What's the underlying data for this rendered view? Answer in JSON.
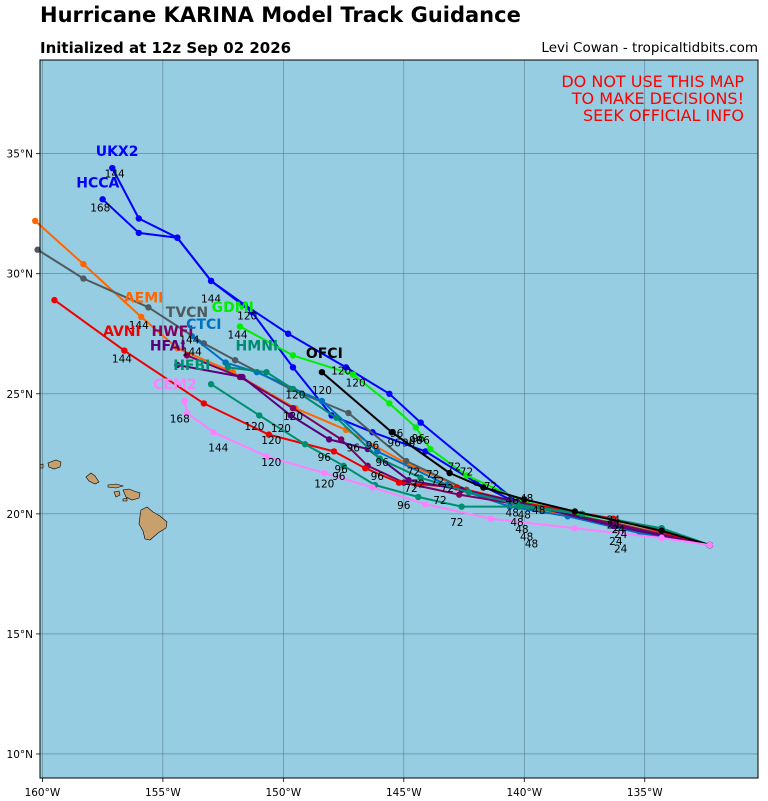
{
  "header": {
    "title": "Hurricane KARINA Model Track Guidance",
    "subtitle": "Initialized at 12z Sep 02 2026",
    "credit": "Levi Cowan - tropicaltidbits.com"
  },
  "warning": [
    "DO NOT USE THIS MAP",
    "TO MAKE DECISIONS!",
    "SEEK OFFICIAL INFO"
  ],
  "colors": {
    "ocean": "#96cde2",
    "land": "#c8a06e",
    "grid": "#4a6b78",
    "warning": "#ff0000"
  },
  "axes": {
    "lon_ticks": [
      -160,
      -155,
      -150,
      -145,
      -140,
      -135
    ],
    "lon_labels": [
      "160°W",
      "155°W",
      "150°W",
      "145°W",
      "140°W",
      "135°W"
    ],
    "lat_ticks": [
      10,
      15,
      20,
      25,
      30,
      35
    ],
    "lat_labels": [
      "10°N",
      "15°N",
      "20°N",
      "25°N",
      "30°N",
      "35°N"
    ],
    "lon_range": [
      -160.1,
      -130.3
    ],
    "lat_range": [
      9.0,
      38.9
    ],
    "grid": true
  },
  "models": [
    {
      "name": "UKX2",
      "color": "#0000ff",
      "points": [
        [
          -132.3,
          18.7
        ],
        [
          -136.2,
          19.5
        ],
        [
          -140.2,
          20.4
        ],
        [
          -144.3,
          23.8
        ],
        [
          -145.6,
          25.0
        ],
        [
          -147.4,
          26.1
        ],
        [
          -149.8,
          27.5
        ],
        [
          -151.6,
          28.7
        ],
        [
          -153.0,
          29.7
        ],
        [
          -154.4,
          31.5
        ],
        [
          -156.0,
          32.3
        ],
        [
          -157.1,
          34.4
        ]
      ],
      "hour_labels": [
        {
          "text": "144",
          "pos": [
            -157.0,
            34.0
          ]
        }
      ]
    },
    {
      "name": "HCCA",
      "color": "#0000ff",
      "points": [
        [
          -132.3,
          18.7
        ],
        [
          -136.3,
          19.5
        ],
        [
          -140.0,
          20.3
        ],
        [
          -142.0,
          21.3
        ],
        [
          -144.1,
          22.6
        ],
        [
          -146.3,
          23.4
        ],
        [
          -148.0,
          24.1
        ],
        [
          -149.6,
          26.1
        ],
        [
          -151.3,
          28.4
        ],
        [
          -153.0,
          29.7
        ],
        [
          -154.4,
          31.5
        ],
        [
          -156.0,
          31.7
        ],
        [
          -157.5,
          33.1
        ]
      ],
      "hour_labels": [
        {
          "text": "144",
          "pos": [
            -153.0,
            28.8
          ]
        },
        {
          "text": "168",
          "pos": [
            -157.6,
            32.6
          ]
        }
      ]
    },
    {
      "name": "AEMI",
      "color": "#ff6600",
      "points": [
        [
          -132.3,
          18.7
        ],
        [
          -136.1,
          19.6
        ],
        [
          -140.1,
          20.3
        ],
        [
          -142.4,
          21.0
        ],
        [
          -144.9,
          22.1
        ],
        [
          -147.4,
          23.5
        ],
        [
          -149.5,
          24.4
        ],
        [
          -152.1,
          25.9
        ],
        [
          -154.4,
          26.9
        ],
        [
          -155.9,
          28.2
        ],
        [
          -158.3,
          30.4
        ],
        [
          -160.3,
          32.2
        ]
      ],
      "hour_labels": [
        {
          "text": "144",
          "pos": [
            -156.0,
            27.7
          ]
        }
      ]
    },
    {
      "name": "TVCN",
      "color": "#4f5a5f",
      "points": [
        [
          -132.3,
          18.7
        ],
        [
          -136.2,
          19.6
        ],
        [
          -140.2,
          20.4
        ],
        [
          -142.4,
          21.0
        ],
        [
          -144.9,
          22.2
        ],
        [
          -147.3,
          24.2
        ],
        [
          -149.7,
          25.2
        ],
        [
          -152.0,
          26.4
        ],
        [
          -153.3,
          27.1
        ],
        [
          -155.6,
          28.6
        ],
        [
          -158.3,
          29.8
        ],
        [
          -160.2,
          31.0
        ]
      ],
      "hour_labels": [
        {
          "text": "144",
          "pos": [
            -153.9,
            27.1
          ]
        }
      ]
    },
    {
      "name": "GDMI",
      "color": "#00ee00",
      "points": [
        [
          -132.3,
          18.7
        ],
        [
          -136.3,
          19.6
        ],
        [
          -140.0,
          20.5
        ],
        [
          -142.4,
          21.6
        ],
        [
          -143.9,
          22.7
        ],
        [
          -144.5,
          23.6
        ],
        [
          -145.6,
          24.6
        ],
        [
          -147.1,
          25.8
        ],
        [
          -149.6,
          26.6
        ],
        [
          -151.8,
          27.8
        ]
      ],
      "hour_labels": [
        {
          "text": "144",
          "pos": [
            -151.9,
            27.3
          ]
        },
        {
          "text": "120",
          "pos": [
            -151.5,
            28.1
          ]
        }
      ]
    },
    {
      "name": "CTCI",
      "color": "#0070c0",
      "points": [
        [
          -132.3,
          18.7
        ],
        [
          -135.2,
          19.2
        ],
        [
          -138.2,
          19.9
        ],
        [
          -140.6,
          20.3
        ],
        [
          -143.2,
          21.2
        ],
        [
          -146.1,
          22.6
        ],
        [
          -148.4,
          24.7
        ],
        [
          -151.1,
          25.9
        ],
        [
          -152.4,
          26.3
        ],
        [
          -153.8,
          27.4
        ]
      ],
      "hour_labels": [
        {
          "text": "120",
          "pos": [
            -148.4,
            25.0
          ]
        }
      ]
    },
    {
      "name": "HWFI",
      "color": "#800060",
      "points": [
        [
          -132.3,
          18.7
        ],
        [
          -136.3,
          19.6
        ],
        [
          -139.7,
          20.3
        ],
        [
          -142.7,
          20.8
        ],
        [
          -145.0,
          21.3
        ],
        [
          -146.5,
          22.0
        ],
        [
          -147.6,
          23.1
        ],
        [
          -149.6,
          24.4
        ],
        [
          -151.8,
          25.7
        ],
        [
          -154.0,
          26.6
        ]
      ],
      "hour_labels": [
        {
          "text": "144",
          "pos": [
            -153.8,
            26.6
          ]
        },
        {
          "text": "120",
          "pos": [
            -149.6,
            23.9
          ]
        },
        {
          "text": "96",
          "pos": [
            -147.1,
            22.6
          ]
        }
      ]
    },
    {
      "name": "AVNI",
      "color": "#ee0000",
      "points": [
        [
          -132.3,
          18.7
        ],
        [
          -136.3,
          19.8
        ],
        [
          -140.3,
          20.5
        ],
        [
          -142.8,
          21.1
        ],
        [
          -145.2,
          21.3
        ],
        [
          -146.6,
          21.9
        ],
        [
          -147.9,
          22.6
        ],
        [
          -150.6,
          23.3
        ],
        [
          -153.3,
          24.6
        ],
        [
          -156.6,
          26.8
        ],
        [
          -159.5,
          28.9
        ]
      ],
      "hour_labels": [
        {
          "text": "144",
          "pos": [
            -156.7,
            26.3
          ]
        },
        {
          "text": "120",
          "pos": [
            -150.5,
            22.9
          ]
        },
        {
          "text": "96",
          "pos": [
            -145.9,
            22.0
          ]
        }
      ]
    },
    {
      "name": "HFAI",
      "color": "#5a007a",
      "points": [
        [
          -132.3,
          18.7
        ],
        [
          -136.3,
          19.5
        ],
        [
          -140.3,
          20.5
        ],
        [
          -142.6,
          21.0
        ],
        [
          -144.8,
          21.4
        ],
        [
          -146.5,
          22.7
        ],
        [
          -148.1,
          23.1
        ],
        [
          -149.7,
          24.1
        ],
        [
          -151.7,
          25.7
        ],
        [
          -154.4,
          26.2
        ]
      ],
      "hour_labels": [
        {
          "text": "120",
          "pos": [
            -150.5,
            22.0
          ]
        },
        {
          "text": "96",
          "pos": [
            -147.7,
            21.4
          ]
        }
      ]
    },
    {
      "name": "HMNI",
      "color": "#008a70",
      "points": [
        [
          -132.3,
          18.7
        ],
        [
          -134.3,
          19.4
        ],
        [
          -137.6,
          20.0
        ],
        [
          -140.3,
          20.4
        ],
        [
          -142.3,
          20.9
        ],
        [
          -144.3,
          21.5
        ],
        [
          -146.0,
          22.3
        ],
        [
          -147.8,
          24.0
        ],
        [
          -149.6,
          25.2
        ],
        [
          -150.7,
          25.9
        ],
        [
          -152.3,
          26.1
        ]
      ],
      "hour_labels": [
        {
          "text": "120",
          "pos": [
            -147.0,
            25.3
          ]
        },
        {
          "text": "96",
          "pos": [
            -144.2,
            22.9
          ]
        }
      ]
    },
    {
      "name": "HFBI",
      "color": "#009070",
      "points": [
        [
          -132.3,
          18.7
        ],
        [
          -134.3,
          19.4
        ],
        [
          -137.6,
          20.0
        ],
        [
          -140.2,
          20.3
        ],
        [
          -142.6,
          20.3
        ],
        [
          -144.4,
          20.7
        ],
        [
          -146.2,
          21.2
        ],
        [
          -147.5,
          22.0
        ],
        [
          -149.1,
          22.9
        ],
        [
          -151.0,
          24.1
        ],
        [
          -153.0,
          25.4
        ]
      ],
      "hour_labels": [
        {
          "text": "120",
          "pos": [
            -151.2,
            23.5
          ]
        },
        {
          "text": "96",
          "pos": [
            -146.1,
            21.4
          ]
        },
        {
          "text": "72",
          "pos": [
            -144.4,
            21.1
          ]
        }
      ]
    },
    {
      "name": "OFCI",
      "color": "#000000",
      "points": [
        [
          -132.3,
          18.7
        ],
        [
          -134.3,
          19.3
        ],
        [
          -137.9,
          20.1
        ],
        [
          -140.0,
          20.6
        ],
        [
          -141.7,
          21.1
        ],
        [
          -143.1,
          21.7
        ],
        [
          -145.5,
          23.4
        ],
        [
          -148.4,
          25.9
        ]
      ],
      "hour_labels": [
        {
          "text": "120",
          "pos": [
            -147.6,
            25.8
          ]
        },
        {
          "text": "96",
          "pos": [
            -145.3,
            23.2
          ]
        }
      ]
    },
    {
      "name": "CEM2",
      "color": "#ff80ff",
      "points": [
        [
          -132.3,
          18.7
        ],
        [
          -134.3,
          19.0
        ],
        [
          -137.9,
          19.4
        ],
        [
          -141.4,
          19.8
        ],
        [
          -144.1,
          20.4
        ],
        [
          -146.3,
          21.1
        ],
        [
          -148.3,
          21.7
        ],
        [
          -150.7,
          22.4
        ],
        [
          -152.9,
          23.4
        ],
        [
          -154.0,
          24.2
        ],
        [
          -154.1,
          24.7
        ]
      ],
      "hour_labels": [
        {
          "text": "168",
          "pos": [
            -154.3,
            23.8
          ]
        },
        {
          "text": "144",
          "pos": [
            -152.7,
            22.6
          ]
        },
        {
          "text": "120",
          "pos": [
            -148.3,
            21.1
          ]
        },
        {
          "text": "96",
          "pos": [
            -145.0,
            20.2
          ]
        },
        {
          "text": "72",
          "pos": [
            -142.8,
            19.5
          ]
        }
      ]
    }
  ],
  "model_labels": [
    {
      "text": "UKX2",
      "color": "#0000ff",
      "pos": [
        -156.9,
        34.9
      ]
    },
    {
      "text": "HCCA",
      "color": "#0000ff",
      "pos": [
        -157.7,
        33.6
      ]
    },
    {
      "text": "AEMI",
      "color": "#ff6600",
      "pos": [
        -155.8,
        28.8
      ]
    },
    {
      "text": "TVCN",
      "color": "#4f5a5f",
      "pos": [
        -154.0,
        28.2
      ]
    },
    {
      "text": "GDMI",
      "color": "#00ee00",
      "pos": [
        -152.1,
        28.4
      ]
    },
    {
      "text": "AVNI",
      "color": "#ee0000",
      "pos": [
        -156.7,
        27.4
      ]
    },
    {
      "text": "HWFI",
      "color": "#800060",
      "pos": [
        -154.6,
        27.4
      ]
    },
    {
      "text": "CTCI",
      "color": "#0070c0",
      "pos": [
        -153.3,
        27.7
      ]
    },
    {
      "text": "HFAI",
      "color": "#5a007a",
      "pos": [
        -154.8,
        26.8
      ]
    },
    {
      "text": "HMNI",
      "color": "#008a70",
      "pos": [
        -151.1,
        26.8
      ]
    },
    {
      "text": "OFCI",
      "color": "#000000",
      "pos": [
        -148.3,
        26.5
      ]
    },
    {
      "text": "HFBI",
      "color": "#009070",
      "pos": [
        -153.8,
        26.0
      ]
    },
    {
      "text": "CEM2",
      "color": "#ff80ff",
      "pos": [
        -154.5,
        25.2
      ]
    }
  ],
  "cluster_hour_labels": [
    {
      "text": "120",
      "pos": [
        -149.5,
        24.8
      ]
    },
    {
      "text": "120",
      "pos": [
        -150.1,
        23.4
      ]
    },
    {
      "text": "96",
      "pos": [
        -148.3,
        22.2
      ]
    },
    {
      "text": "96",
      "pos": [
        -147.6,
        21.7
      ]
    },
    {
      "text": "96",
      "pos": [
        -146.3,
        22.7
      ]
    },
    {
      "text": "96",
      "pos": [
        -145.4,
        22.8
      ]
    },
    {
      "text": "96",
      "pos": [
        -144.8,
        22.8
      ]
    },
    {
      "text": "96",
      "pos": [
        -144.5,
        22.9
      ]
    },
    {
      "text": "96",
      "pos": [
        -144.4,
        23.0
      ]
    },
    {
      "text": "72",
      "pos": [
        -144.7,
        20.9
      ]
    },
    {
      "text": "72",
      "pos": [
        -143.6,
        21.2
      ]
    },
    {
      "text": "72",
      "pos": [
        -143.2,
        20.9
      ]
    },
    {
      "text": "72",
      "pos": [
        -142.9,
        21.8
      ]
    },
    {
      "text": "72",
      "pos": [
        -142.4,
        21.6
      ]
    },
    {
      "text": "72",
      "pos": [
        -141.4,
        21.0
      ]
    },
    {
      "text": "72",
      "pos": [
        -143.5,
        20.4
      ]
    },
    {
      "text": "72",
      "pos": [
        -143.8,
        21.5
      ]
    },
    {
      "text": "72",
      "pos": [
        -144.6,
        21.6
      ]
    },
    {
      "text": "48",
      "pos": [
        -140.5,
        20.4
      ]
    },
    {
      "text": "48",
      "pos": [
        -139.9,
        20.5
      ]
    },
    {
      "text": "48",
      "pos": [
        -139.4,
        20.0
      ]
    },
    {
      "text": "48",
      "pos": [
        -140.0,
        19.8
      ]
    },
    {
      "text": "48",
      "pos": [
        -140.3,
        19.5
      ]
    },
    {
      "text": "48",
      "pos": [
        -140.1,
        19.2
      ]
    },
    {
      "text": "48",
      "pos": [
        -139.9,
        18.9
      ]
    },
    {
      "text": "48",
      "pos": [
        -139.7,
        18.6
      ]
    },
    {
      "text": "48",
      "pos": [
        -140.5,
        19.9
      ]
    },
    {
      "text": "24",
      "pos": [
        -136.3,
        19.4
      ]
    },
    {
      "text": "24",
      "pos": [
        -136.1,
        19.2
      ]
    },
    {
      "text": "24",
      "pos": [
        -136.0,
        19.0
      ]
    },
    {
      "text": "24",
      "pos": [
        -136.2,
        18.7
      ]
    },
    {
      "text": "24",
      "pos": [
        -136.0,
        18.4
      ]
    },
    {
      "text": "24",
      "pos": [
        -136.3,
        19.6
      ]
    }
  ]
}
